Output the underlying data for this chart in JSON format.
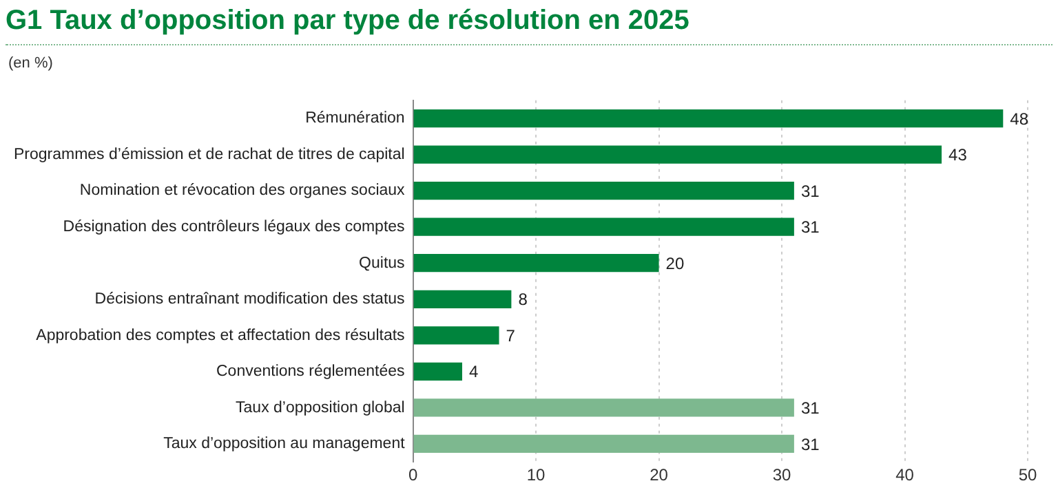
{
  "chart_data": {
    "type": "bar",
    "orientation": "horizontal",
    "title": "G1  Taux d’opposition par type de résolution en 2025",
    "subtitle": "(en %)",
    "categories": [
      "Rémunération",
      "Programmes d’émission et de rachat de titres de capital",
      "Nomination et révocation des organes sociaux",
      "Désignation des contrôleurs légaux des comptes",
      "Quitus",
      "Décisions entraînant modification des status",
      "Approbation des comptes et affectation des résultats",
      "Conventions réglementées",
      "Taux d’opposition global",
      "Taux d’opposition au management"
    ],
    "values": [
      48,
      43,
      31,
      31,
      20,
      8,
      7,
      4,
      31,
      31
    ],
    "colors": [
      "#00843d",
      "#00843d",
      "#00843d",
      "#00843d",
      "#00843d",
      "#00843d",
      "#00843d",
      "#00843d",
      "#7db88f",
      "#7db88f"
    ],
    "xlim": [
      0,
      50
    ],
    "xticks": [
      0,
      10,
      20,
      30,
      40,
      50
    ],
    "grid": "x",
    "data_labels": true
  }
}
